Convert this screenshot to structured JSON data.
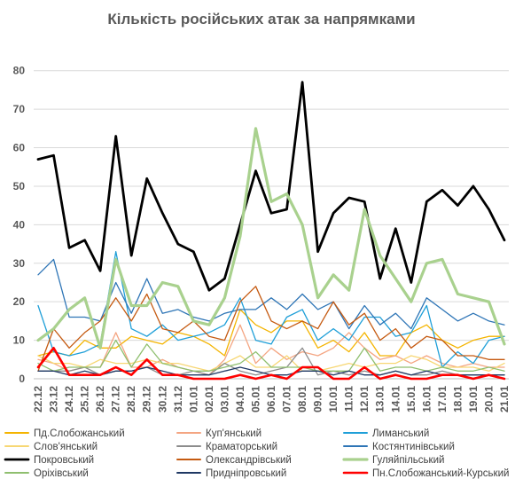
{
  "chart_data": {
    "type": "line",
    "title": "Кількість російських атак за напрямками",
    "xlabel": "",
    "ylabel": "",
    "ylim": [
      0,
      85
    ],
    "yticks": [
      0,
      10,
      20,
      30,
      40,
      50,
      60,
      70,
      80
    ],
    "grid": true,
    "legend_position": "bottom",
    "x": [
      "22.12",
      "23.12",
      "24.12",
      "25.12",
      "26.12",
      "27.12",
      "28.12",
      "29.12",
      "30.12",
      "31.12",
      "01.01",
      "02.01",
      "03.01",
      "04.01",
      "05.01",
      "06.01",
      "07.01",
      "08.01",
      "09.01",
      "10.01",
      "11.01",
      "12.01",
      "13.01",
      "14.01",
      "15.01",
      "16.01",
      "17.01",
      "18.01",
      "19.01",
      "20.01",
      "21.01"
    ],
    "series": [
      {
        "name": "Пд.Слобожанський",
        "color": "#f4b400",
        "width": 1.3,
        "values": [
          6,
          7,
          6,
          10,
          8,
          8,
          11,
          10,
          9,
          12,
          11,
          9,
          6,
          18,
          14,
          12,
          15,
          15,
          8,
          10,
          7,
          12,
          6,
          6,
          12,
          14,
          10,
          8,
          10,
          11,
          11
        ]
      },
      {
        "name": "Куп'янський",
        "color": "#f4a582",
        "width": 1.3,
        "values": [
          5,
          4,
          2,
          3,
          3,
          12,
          3,
          3,
          5,
          3,
          2,
          1,
          5,
          14,
          4,
          8,
          5,
          7,
          6,
          8,
          12,
          8,
          5,
          6,
          4,
          6,
          4,
          3,
          4,
          3,
          3
        ]
      },
      {
        "name": "Лиманський",
        "color": "#1f9fd8",
        "width": 1.3,
        "values": [
          19,
          7,
          6,
          7,
          9,
          33,
          13,
          11,
          14,
          10,
          11,
          12,
          14,
          21,
          10,
          9,
          16,
          18,
          10,
          13,
          10,
          16,
          16,
          11,
          12,
          19,
          3,
          7,
          4,
          10,
          11
        ]
      },
      {
        "name": "Слов'янський",
        "color": "#f7d774",
        "width": 1.3,
        "values": [
          6,
          4,
          4,
          3,
          5,
          4,
          4,
          5,
          4,
          4,
          3,
          2,
          4,
          6,
          3,
          3,
          6,
          2,
          2,
          3,
          4,
          3,
          4,
          4,
          6,
          5,
          3,
          3,
          3,
          2,
          4
        ]
      },
      {
        "name": "Краматорський",
        "color": "#8c8c8c",
        "width": 1.3,
        "values": [
          2,
          2,
          2,
          3,
          1,
          2,
          2,
          3,
          1,
          1,
          2,
          1,
          4,
          2,
          1,
          2,
          3,
          8,
          1,
          2,
          1,
          2,
          1,
          2,
          1,
          1,
          2,
          1,
          1,
          1,
          1
        ]
      },
      {
        "name": "Костянтинівський",
        "color": "#2e75b6",
        "width": 1.3,
        "values": [
          27,
          31,
          16,
          16,
          15,
          25,
          17,
          26,
          17,
          18,
          16,
          15,
          17,
          18,
          18,
          21,
          18,
          22,
          18,
          20,
          13,
          19,
          14,
          17,
          13,
          21,
          18,
          15,
          17,
          15,
          14
        ]
      },
      {
        "name": "Покровський",
        "color": "#000000",
        "width": 2.8,
        "values": [
          57,
          58,
          34,
          36,
          28,
          63,
          32,
          52,
          43,
          35,
          33,
          23,
          26,
          40,
          54,
          43,
          44,
          77,
          33,
          43,
          47,
          46,
          26,
          39,
          25,
          46,
          49,
          45,
          50,
          44,
          36
        ]
      },
      {
        "name": "Олександрівський",
        "color": "#c55a11",
        "width": 1.3,
        "values": [
          2,
          13,
          8,
          12,
          15,
          21,
          15,
          22,
          13,
          12,
          15,
          11,
          10,
          20,
          24,
          15,
          13,
          15,
          13,
          20,
          14,
          17,
          10,
          13,
          8,
          11,
          10,
          6,
          6,
          5,
          5
        ]
      },
      {
        "name": "Гуляйпільський",
        "color": "#a9d18e",
        "width": 3.2,
        "values": [
          10,
          13,
          18,
          21,
          8,
          31,
          19,
          19,
          25,
          24,
          15,
          14,
          21,
          37,
          65,
          46,
          48,
          40,
          21,
          27,
          23,
          44,
          32,
          26,
          20,
          30,
          31,
          22,
          21,
          20,
          9
        ]
      },
      {
        "name": "Оріхівський",
        "color": "#8fbf6f",
        "width": 1.3,
        "values": [
          4,
          2,
          3,
          3,
          3,
          10,
          3,
          9,
          4,
          3,
          2,
          2,
          3,
          4,
          7,
          3,
          3,
          3,
          2,
          2,
          2,
          8,
          2,
          3,
          3,
          2,
          3,
          2,
          2,
          3,
          2
        ]
      },
      {
        "name": "Придніпровський",
        "color": "#1f3864",
        "width": 1.3,
        "values": [
          2,
          2,
          1,
          2,
          1,
          2,
          2,
          3,
          2,
          1,
          1,
          1,
          2,
          3,
          2,
          1,
          1,
          2,
          2,
          1,
          2,
          1,
          1,
          2,
          1,
          2,
          1,
          1,
          1,
          1,
          1
        ]
      },
      {
        "name": "Пн.Слобожанський-Курський",
        "color": "#ff0000",
        "width": 2.6,
        "values": [
          3,
          8,
          1,
          1,
          1,
          3,
          1,
          5,
          1,
          1,
          0,
          0,
          0,
          1,
          0,
          1,
          0,
          3,
          3,
          0,
          0,
          3,
          0,
          1,
          0,
          0,
          1,
          1,
          0,
          1,
          0
        ]
      }
    ]
  }
}
